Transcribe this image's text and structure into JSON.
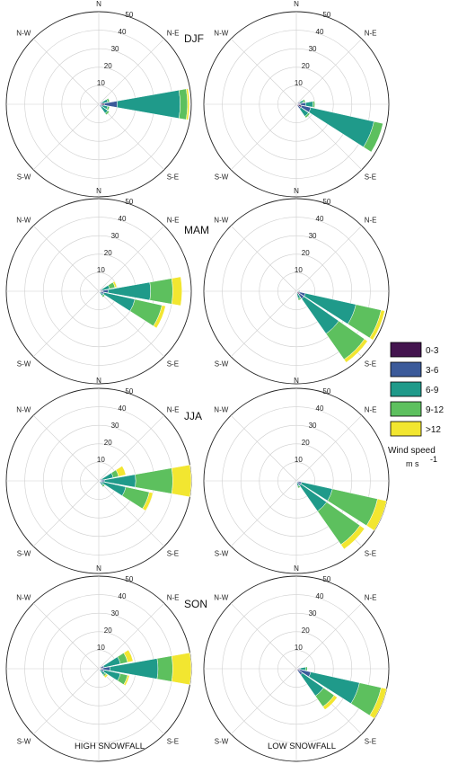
{
  "columns": [
    "HIGH SNOWFALL",
    "LOW SNOWFALL"
  ],
  "seasons": [
    "DJF",
    "MAM",
    "JJA",
    "SON"
  ],
  "legend": {
    "title": "Wind speed",
    "unit_base": "m s",
    "unit_exp": "-1",
    "bins": [
      "0-3",
      "3-6",
      "6-9",
      "9-12",
      ">12"
    ],
    "colors": [
      "#44154f",
      "#3b5a9a",
      "#1f9a8a",
      "#5dc05e",
      "#f2e630"
    ]
  },
  "chart_data": [
    {
      "type": "windrose",
      "season": "DJF",
      "column": "HIGH SNOWFALL",
      "radial_ticks": [
        10,
        20,
        30,
        40,
        50
      ],
      "rmax": 50,
      "direction_labels": [
        "N",
        "N-E",
        "S-E",
        "S-W",
        "N-W"
      ],
      "sectors": [
        {
          "direction_deg": 67.5,
          "cumulative": [
            1,
            2,
            5,
            6,
            6
          ]
        },
        {
          "direction_deg": 90,
          "cumulative": [
            3,
            10,
            44,
            48,
            49
          ]
        },
        {
          "direction_deg": 112.5,
          "cumulative": [
            0.5,
            2,
            5,
            6,
            6
          ]
        },
        {
          "direction_deg": 135,
          "cumulative": [
            0.5,
            2,
            6,
            7,
            7
          ]
        }
      ]
    },
    {
      "type": "windrose",
      "season": "DJF",
      "column": "LOW SNOWFALL",
      "radial_ticks": [
        10,
        20,
        30,
        40,
        50
      ],
      "rmax": 50,
      "direction_labels": [
        "N",
        "N-E",
        "S-E",
        "S-W",
        "N-W"
      ],
      "sectors": [
        {
          "direction_deg": 67.5,
          "cumulative": [
            1,
            2,
            4,
            5,
            5
          ]
        },
        {
          "direction_deg": 90,
          "cumulative": [
            2,
            5,
            9,
            10,
            10
          ]
        },
        {
          "direction_deg": 112.5,
          "cumulative": [
            3,
            8,
            43,
            48,
            48
          ]
        },
        {
          "direction_deg": 135,
          "cumulative": [
            1,
            3,
            8,
            9,
            9
          ]
        }
      ]
    },
    {
      "type": "windrose",
      "season": "MAM",
      "column": "HIGH SNOWFALL",
      "radial_ticks": [
        10,
        20,
        30,
        40,
        50
      ],
      "rmax": 50,
      "direction_labels": [
        "N",
        "N-E",
        "S-E",
        "S-W",
        "N-W"
      ],
      "sectors": [
        {
          "direction_deg": 67.5,
          "cumulative": [
            1,
            2,
            6,
            9,
            10
          ]
        },
        {
          "direction_deg": 90,
          "cumulative": [
            2,
            5,
            28,
            40,
            45
          ]
        },
        {
          "direction_deg": 112.5,
          "cumulative": [
            1,
            3,
            20,
            35,
            37
          ]
        },
        {
          "direction_deg": 135,
          "cumulative": [
            0.5,
            1,
            3,
            4,
            4
          ]
        }
      ]
    },
    {
      "type": "windrose",
      "season": "MAM",
      "column": "LOW SNOWFALL",
      "radial_ticks": [
        10,
        20,
        30,
        40,
        50
      ],
      "rmax": 50,
      "direction_labels": [
        "N",
        "N-E",
        "S-E",
        "S-W",
        "N-W"
      ],
      "sectors": [
        {
          "direction_deg": 90,
          "cumulative": [
            0.5,
            1,
            2,
            2,
            2
          ]
        },
        {
          "direction_deg": 112.5,
          "cumulative": [
            2,
            5,
            33,
            47,
            49
          ]
        },
        {
          "direction_deg": 135,
          "cumulative": [
            2,
            5,
            28,
            45,
            47
          ]
        },
        {
          "direction_deg": 157.5,
          "cumulative": [
            0.5,
            1,
            4,
            5,
            5
          ]
        }
      ]
    },
    {
      "type": "windrose",
      "season": "JJA",
      "column": "HIGH SNOWFALL",
      "radial_ticks": [
        10,
        20,
        30,
        40,
        50
      ],
      "rmax": 50,
      "direction_labels": [
        "N",
        "N-E",
        "S-E",
        "S-W",
        "N-W"
      ],
      "sectors": [
        {
          "direction_deg": 67.5,
          "cumulative": [
            1,
            2,
            8,
            11,
            15
          ]
        },
        {
          "direction_deg": 90,
          "cumulative": [
            1,
            3,
            20,
            40,
            50
          ]
        },
        {
          "direction_deg": 112.5,
          "cumulative": [
            1,
            2,
            15,
            28,
            30
          ]
        },
        {
          "direction_deg": 135,
          "cumulative": [
            0.5,
            1,
            3,
            4,
            4
          ]
        }
      ]
    },
    {
      "type": "windrose",
      "season": "JJA",
      "column": "LOW SNOWFALL",
      "radial_ticks": [
        10,
        20,
        30,
        40,
        50
      ],
      "rmax": 50,
      "direction_labels": [
        "N",
        "N-E",
        "S-E",
        "S-W",
        "N-W"
      ],
      "sectors": [
        {
          "direction_deg": 112.5,
          "cumulative": [
            1,
            3,
            20,
            45,
            50
          ]
        },
        {
          "direction_deg": 135,
          "cumulative": [
            1,
            3,
            20,
            42,
            45
          ]
        },
        {
          "direction_deg": 157.5,
          "cumulative": [
            0.5,
            1,
            3,
            4,
            4
          ]
        }
      ]
    },
    {
      "type": "windrose",
      "season": "SON",
      "column": "HIGH SNOWFALL",
      "radial_ticks": [
        10,
        20,
        30,
        40,
        50
      ],
      "rmax": 50,
      "direction_labels": [
        "N",
        "N-E",
        "S-E",
        "S-W",
        "N-W"
      ],
      "sectors": [
        {
          "direction_deg": 67.5,
          "cumulative": [
            1,
            3,
            12,
            16,
            19
          ]
        },
        {
          "direction_deg": 90,
          "cumulative": [
            2,
            6,
            32,
            40,
            50
          ]
        },
        {
          "direction_deg": 112.5,
          "cumulative": [
            1,
            3,
            12,
            16,
            17
          ]
        },
        {
          "direction_deg": 135,
          "cumulative": [
            0.5,
            1,
            4,
            5,
            6
          ]
        }
      ]
    },
    {
      "type": "windrose",
      "season": "SON",
      "column": "LOW SNOWFALL",
      "radial_ticks": [
        10,
        20,
        30,
        40,
        50
      ],
      "rmax": 50,
      "direction_labels": [
        "N",
        "N-E",
        "S-E",
        "S-W",
        "N-W"
      ],
      "sectors": [
        {
          "direction_deg": 90,
          "cumulative": [
            1,
            2,
            5,
            6,
            6
          ]
        },
        {
          "direction_deg": 112.5,
          "cumulative": [
            2,
            8,
            35,
            47,
            50
          ]
        },
        {
          "direction_deg": 135,
          "cumulative": [
            1,
            4,
            18,
            25,
            27
          ]
        }
      ]
    }
  ]
}
